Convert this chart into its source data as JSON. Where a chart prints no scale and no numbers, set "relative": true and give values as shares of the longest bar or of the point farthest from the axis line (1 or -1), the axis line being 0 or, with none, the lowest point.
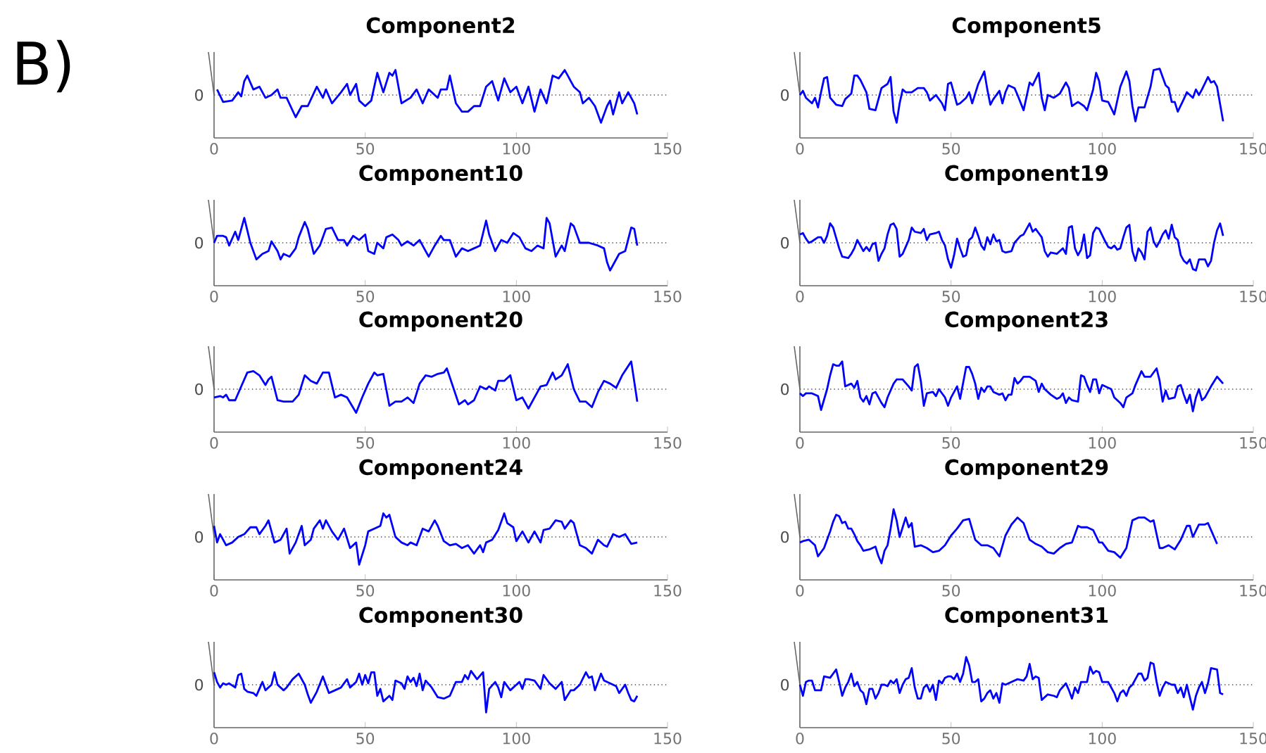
{
  "chart_data": [
    {
      "type": "line",
      "title": "Component2",
      "relative": true,
      "color": "#0000ff",
      "xlim": [
        0,
        150
      ],
      "xticks": [
        0,
        50,
        100,
        150
      ],
      "tick_labels": "x",
      "annotations": [
        "B)"
      ],
      "ref_lines": [
        {
          "axis": "y",
          "value": 0,
          "label": "0",
          "line_style": "dotted"
        }
      ],
      "x": [
        1,
        3,
        6,
        8,
        9,
        10,
        11,
        13,
        15,
        17,
        19,
        21,
        22,
        24,
        27,
        29,
        31,
        34,
        36,
        37,
        39,
        42,
        44,
        45,
        47,
        48,
        50,
        52,
        54,
        56,
        58,
        59,
        60,
        62,
        65,
        67,
        69,
        71,
        74,
        75,
        77,
        78,
        80,
        82,
        84,
        86,
        88,
        90,
        92,
        94,
        96,
        98,
        100,
        102,
        104,
        106,
        108,
        110,
        112,
        114,
        116,
        117,
        118,
        119,
        121,
        122,
        124,
        126,
        128,
        130,
        131,
        132,
        134,
        135,
        137,
        139,
        140
      ],
      "values": [
        0.2,
        -0.25,
        -0.2,
        0.1,
        -0.05,
        0.5,
        0.7,
        0.2,
        0.3,
        -0.1,
        0.0,
        0.2,
        -0.1,
        -0.1,
        -0.8,
        -0.4,
        -0.4,
        0.3,
        -0.1,
        0.2,
        -0.3,
        0.1,
        0.4,
        0,
        0.4,
        -0.2,
        -0.4,
        -0.2,
        0.8,
        0.1,
        0.8,
        0.7,
        0.9,
        -0.3,
        -0.1,
        0.2,
        -0.3,
        0.2,
        -0.1,
        0.2,
        0.2,
        0.7,
        -0.3,
        -0.6,
        -0.6,
        -0.4,
        -0.4,
        0.3,
        0.5,
        -0.2,
        0.6,
        0.1,
        0.3,
        -0.3,
        0.3,
        -0.6,
        0.2,
        -0.3,
        0.7,
        0.6,
        0.9,
        0.7,
        0.5,
        0.3,
        0.1,
        -0.3,
        -0.1,
        -0.4,
        -1.0,
        -0.4,
        -0.2,
        -0.7,
        0.1,
        -0.3,
        0.1,
        -0.3,
        -0.7
      ]
    },
    {
      "type": "line",
      "title": "Component5",
      "relative": true,
      "color": "#0000ff",
      "xlim": [
        0,
        150
      ],
      "xticks": [
        0,
        50,
        100,
        150
      ],
      "tick_labels": "x",
      "ref_lines": [
        {
          "axis": "y",
          "value": 0,
          "label": "0",
          "line_style": "dotted"
        }
      ],
      "x": [
        0,
        1,
        2,
        4,
        5,
        6,
        7,
        8,
        9,
        10,
        12,
        14,
        15,
        17,
        18,
        19,
        20,
        22,
        23,
        25,
        27,
        29,
        30,
        31,
        32,
        33,
        34,
        35,
        37,
        39,
        41,
        42,
        43,
        45,
        47,
        48,
        49,
        50,
        52,
        53,
        55,
        56,
        57,
        59,
        61,
        62,
        63,
        64,
        66,
        67,
        68,
        69,
        71,
        72,
        74,
        76,
        77,
        79,
        80,
        81,
        82,
        84,
        86,
        88,
        89,
        90,
        92,
        94,
        95,
        97,
        98,
        99,
        100,
        102,
        104,
        106,
        108,
        109,
        110,
        111,
        112,
        114,
        116,
        117,
        119,
        121,
        122,
        123,
        124,
        125,
        127,
        128,
        130,
        131,
        132,
        133,
        135,
        136,
        137,
        138,
        140
      ],
      "values": [
        0,
        0.15,
        -0.1,
        -0.3,
        -0.1,
        -0.45,
        0.1,
        0.6,
        0.65,
        -0.1,
        -0.35,
        -0.4,
        -0.15,
        0.05,
        0.7,
        0.7,
        0.55,
        0.1,
        -0.5,
        -0.55,
        0.25,
        0.4,
        0.65,
        -0.6,
        -1.0,
        -0.3,
        0.2,
        0.1,
        0.1,
        0.25,
        0.25,
        0.1,
        -0.2,
        0,
        -0.3,
        -0.55,
        0.4,
        0.45,
        -0.35,
        -0.3,
        -0.1,
        0.1,
        -0.3,
        0.4,
        0.85,
        0.2,
        -0.35,
        -0.15,
        0.15,
        -0.3,
        0.1,
        0.35,
        0.25,
        0,
        -0.55,
        0.45,
        0.35,
        0.8,
        -0.1,
        -0.55,
        0,
        -0.1,
        0.05,
        0.45,
        0.25,
        -0.4,
        -0.25,
        -0.4,
        -0.55,
        0.2,
        0.8,
        0.5,
        -0.2,
        -0.25,
        -0.7,
        0.3,
        0.85,
        0.5,
        -0.4,
        -0.95,
        -0.45,
        -0.45,
        0.3,
        0.9,
        0.95,
        0.35,
        0.25,
        -0.25,
        -0.25,
        -0.6,
        -0.15,
        0.1,
        -0.1,
        0.2,
        0,
        0.2,
        0.65,
        0.45,
        0.5,
        0.3,
        -0.95
      ]
    },
    {
      "type": "line",
      "title": "Component10",
      "relative": true,
      "color": "#0000ff",
      "xlim": [
        0,
        150
      ],
      "xticks": [
        0,
        50,
        100,
        150
      ],
      "tick_labels": "x",
      "ref_lines": [
        {
          "axis": "y",
          "value": 0,
          "label": "0",
          "line_style": "dotted"
        }
      ],
      "x": [
        0,
        1,
        3,
        4,
        5,
        7,
        8,
        10,
        12,
        14,
        16,
        18,
        19,
        21,
        22,
        23,
        25,
        27,
        28,
        30,
        31,
        33,
        35,
        37,
        39,
        41,
        43,
        44,
        46,
        48,
        50,
        51,
        53,
        54,
        56,
        57,
        59,
        61,
        62,
        64,
        66,
        68,
        70,
        71,
        73,
        75,
        76,
        78,
        80,
        82,
        84,
        86,
        88,
        90,
        91,
        93,
        95,
        97,
        99,
        101,
        103,
        105,
        107,
        109,
        110,
        111,
        113,
        115,
        116,
        118,
        119,
        121,
        124,
        127,
        129,
        130,
        131,
        132,
        134,
        136,
        138,
        139,
        140
      ],
      "values": [
        0,
        0.25,
        0.25,
        0.2,
        -0.1,
        0.4,
        0.1,
        0.9,
        0,
        -0.6,
        -0.4,
        -0.3,
        0.05,
        -0.3,
        -0.6,
        -0.4,
        -0.5,
        -0.2,
        0.2,
        0.75,
        0.5,
        -0.4,
        -0.1,
        0.5,
        0.55,
        0.1,
        0.1,
        -0.1,
        0.25,
        0.1,
        0.3,
        -0.3,
        -0.4,
        0,
        -0.2,
        0.2,
        0.3,
        0.1,
        -0.1,
        0.05,
        -0.1,
        0.1,
        -0.3,
        -0.5,
        -0.1,
        0.25,
        0.1,
        0.1,
        -0.5,
        -0.2,
        -0.3,
        -0.2,
        -0.1,
        0.8,
        0.3,
        -0.3,
        0.1,
        0,
        0.35,
        0.2,
        -0.2,
        -0.3,
        -0.1,
        -0.2,
        0.9,
        0.7,
        -0.5,
        -0.1,
        -0.3,
        0.7,
        0.6,
        0,
        0,
        -0.1,
        -0.2,
        -0.7,
        -1.0,
        -0.8,
        -0.4,
        -0.3,
        0.55,
        0.5,
        -0.1
      ]
    },
    {
      "type": "line",
      "title": "Component19",
      "relative": true,
      "color": "#0000ff",
      "xlim": [
        0,
        150
      ],
      "xticks": [
        0,
        50,
        100,
        150
      ],
      "tick_labels": "x",
      "ref_lines": [
        {
          "axis": "y",
          "value": 0,
          "label": "0",
          "line_style": "dotted"
        }
      ],
      "x": [
        0,
        1,
        2,
        3,
        4,
        6,
        7,
        8,
        9,
        10,
        11,
        13,
        14,
        16,
        17,
        18,
        19,
        20,
        21,
        22,
        23,
        24,
        25,
        26,
        27,
        28,
        29,
        30,
        31,
        32,
        33,
        34,
        35,
        36,
        37,
        38,
        40,
        41,
        42,
        43,
        45,
        46,
        47,
        48,
        49,
        50,
        51,
        52,
        53,
        54,
        55,
        56,
        57,
        58,
        59,
        60,
        61,
        62,
        63,
        64,
        65,
        66,
        67,
        68,
        70,
        71,
        73,
        74,
        76,
        77,
        78,
        79,
        80,
        81,
        82,
        83,
        85,
        86,
        87,
        88,
        89,
        90,
        91,
        92,
        93,
        94,
        95,
        96,
        97,
        98,
        99,
        101,
        102,
        103,
        104,
        105,
        106,
        107,
        108,
        109,
        110,
        111,
        112,
        113,
        114,
        115,
        116,
        117,
        118,
        119,
        120,
        121,
        122,
        123,
        124,
        125,
        126,
        127,
        128,
        129,
        130,
        131,
        132,
        134,
        135,
        136,
        137,
        138,
        139,
        140
      ],
      "values": [
        0.3,
        0.35,
        0.15,
        0,
        0.05,
        0.2,
        0.2,
        0,
        0.25,
        0.7,
        0.55,
        -0.2,
        -0.5,
        -0.55,
        -0.4,
        -0.2,
        0.1,
        -0.1,
        -0.3,
        -0.15,
        -0.3,
        -0.05,
        0,
        -0.65,
        -0.4,
        -0.2,
        0.3,
        0.65,
        0.7,
        0.5,
        -0.5,
        -0.4,
        -0.15,
        0.1,
        0.55,
        0.4,
        0.35,
        0.5,
        0.1,
        0.3,
        0.35,
        0.4,
        0.1,
        -0.1,
        -0.6,
        -0.9,
        -0.45,
        0.15,
        -0.2,
        -0.5,
        -0.45,
        0.1,
        0.2,
        0.55,
        0.25,
        -0.1,
        -0.25,
        0.2,
        -0.05,
        0.3,
        0.05,
        0.1,
        -0.3,
        -0.35,
        -0.3,
        0,
        0.25,
        0.3,
        0.7,
        0.4,
        0.5,
        0.35,
        0.2,
        -0.3,
        -0.5,
        -0.35,
        -0.4,
        -0.3,
        -0.2,
        -0.4,
        0.55,
        0.6,
        -0.2,
        -0.45,
        -0.25,
        0.3,
        -0.55,
        -0.45,
        0.35,
        0.55,
        0.5,
        0.05,
        -0.15,
        -0.2,
        -0.1,
        -0.25,
        -0.2,
        0.2,
        0.55,
        0.65,
        -0.3,
        -0.65,
        -0.2,
        -0.35,
        -0.6,
        0.4,
        0.55,
        0.05,
        -0.15,
        0.05,
        0.3,
        0.45,
        0.15,
        0.65,
        0.2,
        0.1,
        -0.45,
        -0.65,
        -0.75,
        -0.6,
        -0.95,
        -1.0,
        -0.6,
        -0.6,
        -0.85,
        -0.65,
        0,
        0.45,
        0.7,
        0.25
      ]
    },
    {
      "type": "line",
      "title": "Component20",
      "relative": true,
      "color": "#0000ff",
      "xlim": [
        0,
        150
      ],
      "xticks": [
        0,
        50,
        100,
        150
      ],
      "tick_labels": "x",
      "ref_lines": [
        {
          "axis": "y",
          "value": 0,
          "label": "0",
          "line_style": "dotted"
        }
      ],
      "x": [
        0,
        2,
        3,
        4,
        5,
        7,
        9,
        11,
        13,
        15,
        17,
        18,
        19,
        21,
        23,
        26,
        28,
        30,
        32,
        34,
        36,
        38,
        40,
        42,
        44,
        47,
        49,
        51,
        53,
        54,
        56,
        58,
        60,
        62,
        64,
        66,
        68,
        70,
        72,
        74,
        76,
        77,
        79,
        81,
        83,
        84,
        86,
        88,
        90,
        91,
        93,
        94,
        96,
        98,
        100,
        102,
        104,
        106,
        108,
        110,
        112,
        113,
        115,
        117,
        119,
        121,
        123,
        125,
        127,
        129,
        131,
        133,
        135,
        138,
        140
      ],
      "values": [
        -0.3,
        -0.25,
        -0.3,
        -0.2,
        -0.4,
        -0.4,
        0.1,
        0.6,
        0.65,
        0.5,
        0.15,
        0.35,
        0.45,
        -0.4,
        -0.45,
        -0.45,
        -0.2,
        0.5,
        0.3,
        0.2,
        0.6,
        0.6,
        -0.3,
        -0.2,
        -0.3,
        -0.85,
        -0.3,
        0.2,
        0.6,
        0.5,
        0.55,
        -0.6,
        -0.45,
        -0.45,
        -0.3,
        -0.5,
        0.2,
        0.5,
        0.45,
        0.55,
        0.6,
        0.75,
        0.1,
        -0.55,
        -0.4,
        -0.55,
        -0.4,
        0.1,
        0,
        0.1,
        -0.05,
        0.3,
        0.3,
        0.5,
        -0.4,
        -0.3,
        -0.7,
        -0.3,
        0.1,
        0.15,
        0.6,
        0.35,
        0.5,
        0.9,
        0,
        -0.45,
        -0.45,
        -0.65,
        -0.1,
        0.3,
        0.2,
        0.05,
        0.5,
        1.0,
        -0.45
      ]
    },
    {
      "type": "line",
      "title": "Component23",
      "relative": true,
      "color": "#0000ff",
      "xlim": [
        0,
        150
      ],
      "xticks": [
        0,
        50,
        100,
        150
      ],
      "tick_labels": "x",
      "ref_lines": [
        {
          "axis": "y",
          "value": 0,
          "label": "0",
          "line_style": "dotted"
        }
      ],
      "x": [
        0,
        1,
        2,
        4,
        6,
        7,
        9,
        10,
        11,
        12,
        13,
        14,
        15,
        17,
        18,
        19,
        20,
        21,
        22,
        23,
        24,
        25,
        27,
        28,
        29,
        31,
        32,
        34,
        36,
        37,
        38,
        39,
        40,
        41,
        42,
        44,
        45,
        46,
        48,
        49,
        50,
        52,
        53,
        55,
        56,
        57,
        58,
        59,
        60,
        61,
        62,
        63,
        64,
        66,
        67,
        68,
        69,
        70,
        71,
        72,
        73,
        74,
        76,
        78,
        79,
        80,
        81,
        83,
        85,
        86,
        87,
        88,
        89,
        90,
        92,
        93,
        94,
        95,
        96,
        97,
        98,
        99,
        100,
        101,
        103,
        104,
        106,
        107,
        108,
        110,
        111,
        113,
        114,
        116,
        118,
        119,
        120,
        121,
        122,
        124,
        125,
        126,
        127,
        128,
        129,
        130,
        131,
        132,
        133,
        134,
        136,
        138,
        140
      ],
      "values": [
        -0.15,
        -0.25,
        -0.15,
        -0.15,
        -0.25,
        -0.75,
        0,
        0.5,
        0.9,
        0.85,
        0.85,
        1.0,
        0.1,
        0.2,
        0.05,
        0.3,
        -0.3,
        -0.45,
        -0.25,
        -0.55,
        -0.15,
        -0.1,
        -0.5,
        -0.65,
        -0.3,
        0.2,
        0.35,
        0.35,
        0.1,
        -0.05,
        0.8,
        0.9,
        0.3,
        -0.6,
        -0.15,
        -0.1,
        -0.25,
        0,
        -0.3,
        -0.6,
        -0.3,
        0.1,
        -0.35,
        0.8,
        0.8,
        0.55,
        0.2,
        -0.35,
        0.05,
        -0.1,
        0.1,
        0.1,
        -0.1,
        -0.2,
        -0.15,
        -0.4,
        -0.2,
        -0.2,
        0.4,
        0.2,
        0.3,
        0.45,
        0.45,
        0.3,
        -0.1,
        0.2,
        0,
        -0.2,
        -0.35,
        -0.3,
        -0.15,
        -0.5,
        -0.3,
        -0.4,
        -0.45,
        0.5,
        0.45,
        0.15,
        -0.1,
        0.35,
        0.35,
        -0.15,
        0.15,
        0.1,
        0,
        -0.3,
        -0.5,
        -0.65,
        -0.3,
        -0.15,
        0.15,
        0.65,
        0.45,
        0.45,
        0.75,
        0.3,
        -0.45,
        -0.05,
        -0.35,
        -0.3,
        0.1,
        0.15,
        -0.2,
        -0.5,
        -0.2,
        -0.8,
        -0.3,
        0,
        -0.4,
        -0.3,
        0.1,
        0.45,
        0.2
      ]
    },
    {
      "type": "line",
      "title": "Component24",
      "relative": true,
      "color": "#0000ff",
      "xlim": [
        0,
        150
      ],
      "xticks": [
        0,
        50,
        100,
        150
      ],
      "tick_labels": "x",
      "ref_lines": [
        {
          "axis": "y",
          "value": 0,
          "label": "0",
          "line_style": "dotted"
        }
      ],
      "x": [
        0,
        1,
        2,
        4,
        6,
        8,
        10,
        12,
        14,
        15,
        17,
        18,
        20,
        22,
        24,
        25,
        27,
        29,
        30,
        32,
        33,
        35,
        36,
        37,
        39,
        41,
        43,
        45,
        47,
        48,
        50,
        51,
        53,
        55,
        56,
        57,
        58,
        60,
        62,
        64,
        65,
        67,
        69,
        71,
        73,
        74,
        76,
        78,
        80,
        82,
        84,
        86,
        88,
        89,
        90,
        92,
        94,
        96,
        97,
        99,
        100,
        102,
        104,
        106,
        108,
        109,
        111,
        113,
        115,
        116,
        118,
        119,
        121,
        123,
        125,
        127,
        129,
        130,
        132,
        134,
        136,
        138,
        140
      ],
      "values": [
        0.4,
        -0.2,
        0.1,
        -0.3,
        -0.2,
        0,
        0.1,
        0.35,
        0.35,
        0.1,
        0.4,
        0.6,
        -0.2,
        -0.1,
        0.3,
        -0.6,
        -0.2,
        0.4,
        -0.3,
        -0.1,
        0.3,
        0.6,
        0.3,
        0.6,
        0.2,
        -0.1,
        0.3,
        -0.4,
        -0.2,
        -1.0,
        -0.3,
        0.2,
        0.3,
        0.4,
        0.85,
        0.7,
        0.8,
        0,
        -0.2,
        -0.3,
        -0.2,
        -0.3,
        0.3,
        0.2,
        0.6,
        0.4,
        -0.15,
        -0.3,
        -0.25,
        -0.4,
        -0.3,
        -0.6,
        -0.3,
        -0.55,
        -0.2,
        -0.1,
        0.25,
        0.85,
        0.5,
        0.35,
        -0.15,
        0.2,
        -0.2,
        0.2,
        -0.2,
        0.25,
        0.3,
        0.6,
        0.55,
        0.3,
        0.6,
        0.5,
        -0.3,
        -0.4,
        -0.6,
        -0.1,
        -0.3,
        -0.35,
        0.1,
        0,
        0.1,
        -0.25,
        -0.2
      ]
    },
    {
      "type": "line",
      "title": "Component29",
      "relative": true,
      "color": "#0000ff",
      "xlim": [
        0,
        150
      ],
      "xticks": [
        0,
        50,
        100,
        150
      ],
      "tick_labels": "x",
      "ref_lines": [
        {
          "axis": "y",
          "value": 0,
          "label": "0",
          "line_style": "dotted"
        }
      ],
      "x": [
        0,
        1,
        3,
        5,
        6,
        8,
        10,
        11,
        12,
        13,
        14,
        15,
        16,
        17,
        18,
        19,
        20,
        21,
        23,
        25,
        26,
        27,
        28,
        29,
        30,
        31,
        32,
        33,
        34,
        35,
        36,
        37,
        38,
        40,
        42,
        44,
        46,
        48,
        50,
        52,
        54,
        56,
        58,
        60,
        62,
        64,
        66,
        68,
        70,
        72,
        74,
        76,
        78,
        80,
        82,
        84,
        86,
        88,
        90,
        92,
        93,
        95,
        97,
        99,
        100,
        102,
        104,
        106,
        108,
        110,
        112,
        114,
        116,
        117,
        119,
        120,
        122,
        124,
        126,
        128,
        129,
        130,
        132,
        134,
        135,
        137,
        138
      ],
      "values": [
        -0.2,
        -0.15,
        -0.1,
        -0.3,
        -0.7,
        -0.4,
        0.2,
        0.55,
        0.8,
        0.75,
        0.5,
        0.55,
        0.3,
        0.3,
        0.1,
        -0.15,
        -0.3,
        -0.5,
        -0.45,
        -0.35,
        -0.7,
        -0.95,
        -0.5,
        -0.3,
        0.3,
        1.0,
        0.6,
        0,
        0.35,
        0.7,
        0.35,
        0.5,
        -0.35,
        -0.3,
        -0.4,
        -0.55,
        -0.5,
        -0.3,
        0.05,
        0.3,
        0.6,
        0.65,
        -0.1,
        -0.3,
        -0.3,
        -0.4,
        -0.7,
        0.05,
        0.45,
        0.7,
        0.5,
        -0.1,
        -0.25,
        -0.35,
        -0.55,
        -0.6,
        -0.4,
        -0.25,
        -0.2,
        0.4,
        0.35,
        0.35,
        0.25,
        -0.2,
        -0.2,
        -0.5,
        -0.55,
        -0.75,
        -0.4,
        0.6,
        0.7,
        0.7,
        0.55,
        0.6,
        -0.4,
        -0.4,
        -0.3,
        -0.45,
        -0.1,
        0.4,
        0.4,
        0,
        0.45,
        0.45,
        0.5,
        0,
        -0.25
      ]
    },
    {
      "type": "line",
      "title": "Component30",
      "relative": true,
      "color": "#0000ff",
      "xlim": [
        0,
        150
      ],
      "xticks": [
        0,
        50,
        100,
        150
      ],
      "tick_labels": "x",
      "ref_lines": [
        {
          "axis": "y",
          "value": 0,
          "label": "0",
          "line_style": "dotted"
        }
      ],
      "x": [
        0,
        1,
        2,
        3,
        4,
        5,
        7,
        8,
        9,
        10,
        11,
        13,
        14,
        15,
        16,
        17,
        19,
        20,
        21,
        23,
        24,
        26,
        28,
        30,
        31,
        32,
        34,
        36,
        38,
        40,
        42,
        44,
        45,
        47,
        48,
        49,
        50,
        51,
        52,
        53,
        54,
        55,
        56,
        58,
        59,
        60,
        62,
        63,
        64,
        65,
        66,
        67,
        68,
        69,
        70,
        72,
        74,
        76,
        78,
        80,
        82,
        83,
        84,
        85,
        87,
        89,
        90,
        91,
        93,
        94,
        95,
        96,
        98,
        100,
        101,
        102,
        103,
        104,
        106,
        108,
        109,
        111,
        113,
        115,
        116,
        118,
        119,
        121,
        123,
        124,
        125,
        126,
        128,
        129,
        131,
        133,
        134,
        136,
        137,
        138,
        139,
        140
      ],
      "values": [
        0.45,
        0.1,
        -0.1,
        0.05,
        0,
        0.05,
        -0.1,
        0.35,
        0.4,
        -0.15,
        -0.25,
        -0.3,
        -0.4,
        -0.15,
        0.1,
        -0.2,
        0,
        0.45,
        0,
        -0.2,
        -0.1,
        0.2,
        0.4,
        0,
        -0.35,
        -0.65,
        -0.25,
        0.3,
        -0.3,
        -0.2,
        -0.1,
        0.2,
        -0.1,
        0.1,
        0.4,
        0,
        0.35,
        0.05,
        0.45,
        0.45,
        -0.4,
        -0.15,
        -0.6,
        -0.4,
        -0.55,
        0.15,
        0.05,
        -0.15,
        0.3,
        0.1,
        0.25,
        -0.05,
        0.4,
        -0.2,
        0.15,
        -0.1,
        -0.45,
        -0.5,
        -0.4,
        0.1,
        0.1,
        0.35,
        0.2,
        0.5,
        0.2,
        0.45,
        -1.0,
        -0.15,
        0.1,
        -0.1,
        -0.45,
        0.1,
        -0.2,
        0,
        0.1,
        -0.15,
        0.2,
        0.2,
        0.15,
        -0.15,
        0.35,
        0.05,
        -0.15,
        0.1,
        -0.55,
        -0.2,
        -0.2,
        0,
        0.45,
        0.25,
        0.3,
        -0.2,
        0.4,
        0.15,
        0.05,
        -0.05,
        -0.3,
        0,
        -0.3,
        -0.55,
        -0.6,
        -0.4
      ]
    },
    {
      "type": "line",
      "title": "Component31",
      "relative": true,
      "color": "#0000ff",
      "xlim": [
        0,
        150
      ],
      "xticks": [
        0,
        50,
        100,
        150
      ],
      "tick_labels": "x",
      "ref_lines": [
        {
          "axis": "y",
          "value": 0,
          "label": "0",
          "line_style": "dotted"
        }
      ],
      "x": [
        0,
        1,
        2,
        3,
        4,
        5,
        7,
        8,
        10,
        11,
        12,
        13,
        14,
        15,
        16,
        17,
        18,
        19,
        20,
        21,
        22,
        23,
        24,
        25,
        26,
        27,
        28,
        29,
        30,
        31,
        32,
        33,
        34,
        35,
        36,
        37,
        38,
        39,
        40,
        41,
        42,
        43,
        44,
        45,
        46,
        47,
        48,
        49,
        50,
        51,
        52,
        53,
        54,
        55,
        56,
        57,
        58,
        59,
        60,
        61,
        62,
        63,
        64,
        65,
        66,
        67,
        68,
        70,
        72,
        74,
        75,
        76,
        77,
        78,
        79,
        80,
        82,
        84,
        85,
        86,
        88,
        89,
        90,
        91,
        92,
        93,
        95,
        96,
        97,
        98,
        99,
        100,
        101,
        102,
        104,
        105,
        106,
        107,
        108,
        109,
        110,
        111,
        112,
        113,
        114,
        115,
        116,
        117,
        118,
        119,
        120,
        121,
        122,
        123,
        124,
        125,
        126,
        127,
        128,
        129,
        130,
        131,
        132,
        133,
        134,
        135,
        136,
        138,
        139,
        140
      ],
      "values": [
        0,
        -0.4,
        0.1,
        0.15,
        0.15,
        -0.2,
        -0.2,
        0.3,
        0.25,
        0.4,
        0.55,
        0.1,
        -0.4,
        -0.1,
        0.1,
        0.4,
        -0.05,
        0.1,
        -0.2,
        -0.3,
        -0.7,
        -0.15,
        -0.15,
        -0.5,
        -0.3,
        0,
        0,
        -0.05,
        0.15,
        0.05,
        0.2,
        -0.3,
        0,
        0.2,
        0.25,
        0.6,
        -0.1,
        -0.5,
        -0.5,
        -0.1,
        0,
        -0.25,
        0,
        -0.55,
        0.15,
        0.05,
        0.25,
        0.3,
        0.3,
        0.2,
        0.4,
        0.1,
        0.4,
        1.0,
        0.7,
        0.1,
        0.1,
        0.2,
        -0.6,
        -0.5,
        -0.3,
        -0.2,
        -0.5,
        -0.3,
        -0.65,
        0.05,
        0,
        0.1,
        0.2,
        0.15,
        0.3,
        0.75,
        0.2,
        0.3,
        0.25,
        -0.55,
        -0.35,
        -0.4,
        -0.45,
        -0.2,
        0.05,
        -0.2,
        -0.5,
        -0.1,
        -0.3,
        0.1,
        0.1,
        0.65,
        0.4,
        0.5,
        0.45,
        0.1,
        0.1,
        0.1,
        -0.3,
        -0.6,
        -0.3,
        -0.2,
        -0.4,
        -0.1,
        0,
        0.2,
        0.4,
        0.4,
        0.15,
        0.25,
        0.8,
        0.75,
        0.1,
        -0.4,
        -0.1,
        0.1,
        0.05,
        0,
        0,
        -0.3,
        -0.1,
        -0.45,
        0,
        -0.45,
        -0.9,
        -0.4,
        -0.1,
        0.1,
        -0.3,
        0.05,
        0.6,
        0.55,
        -0.3,
        -0.35
      ]
    }
  ]
}
